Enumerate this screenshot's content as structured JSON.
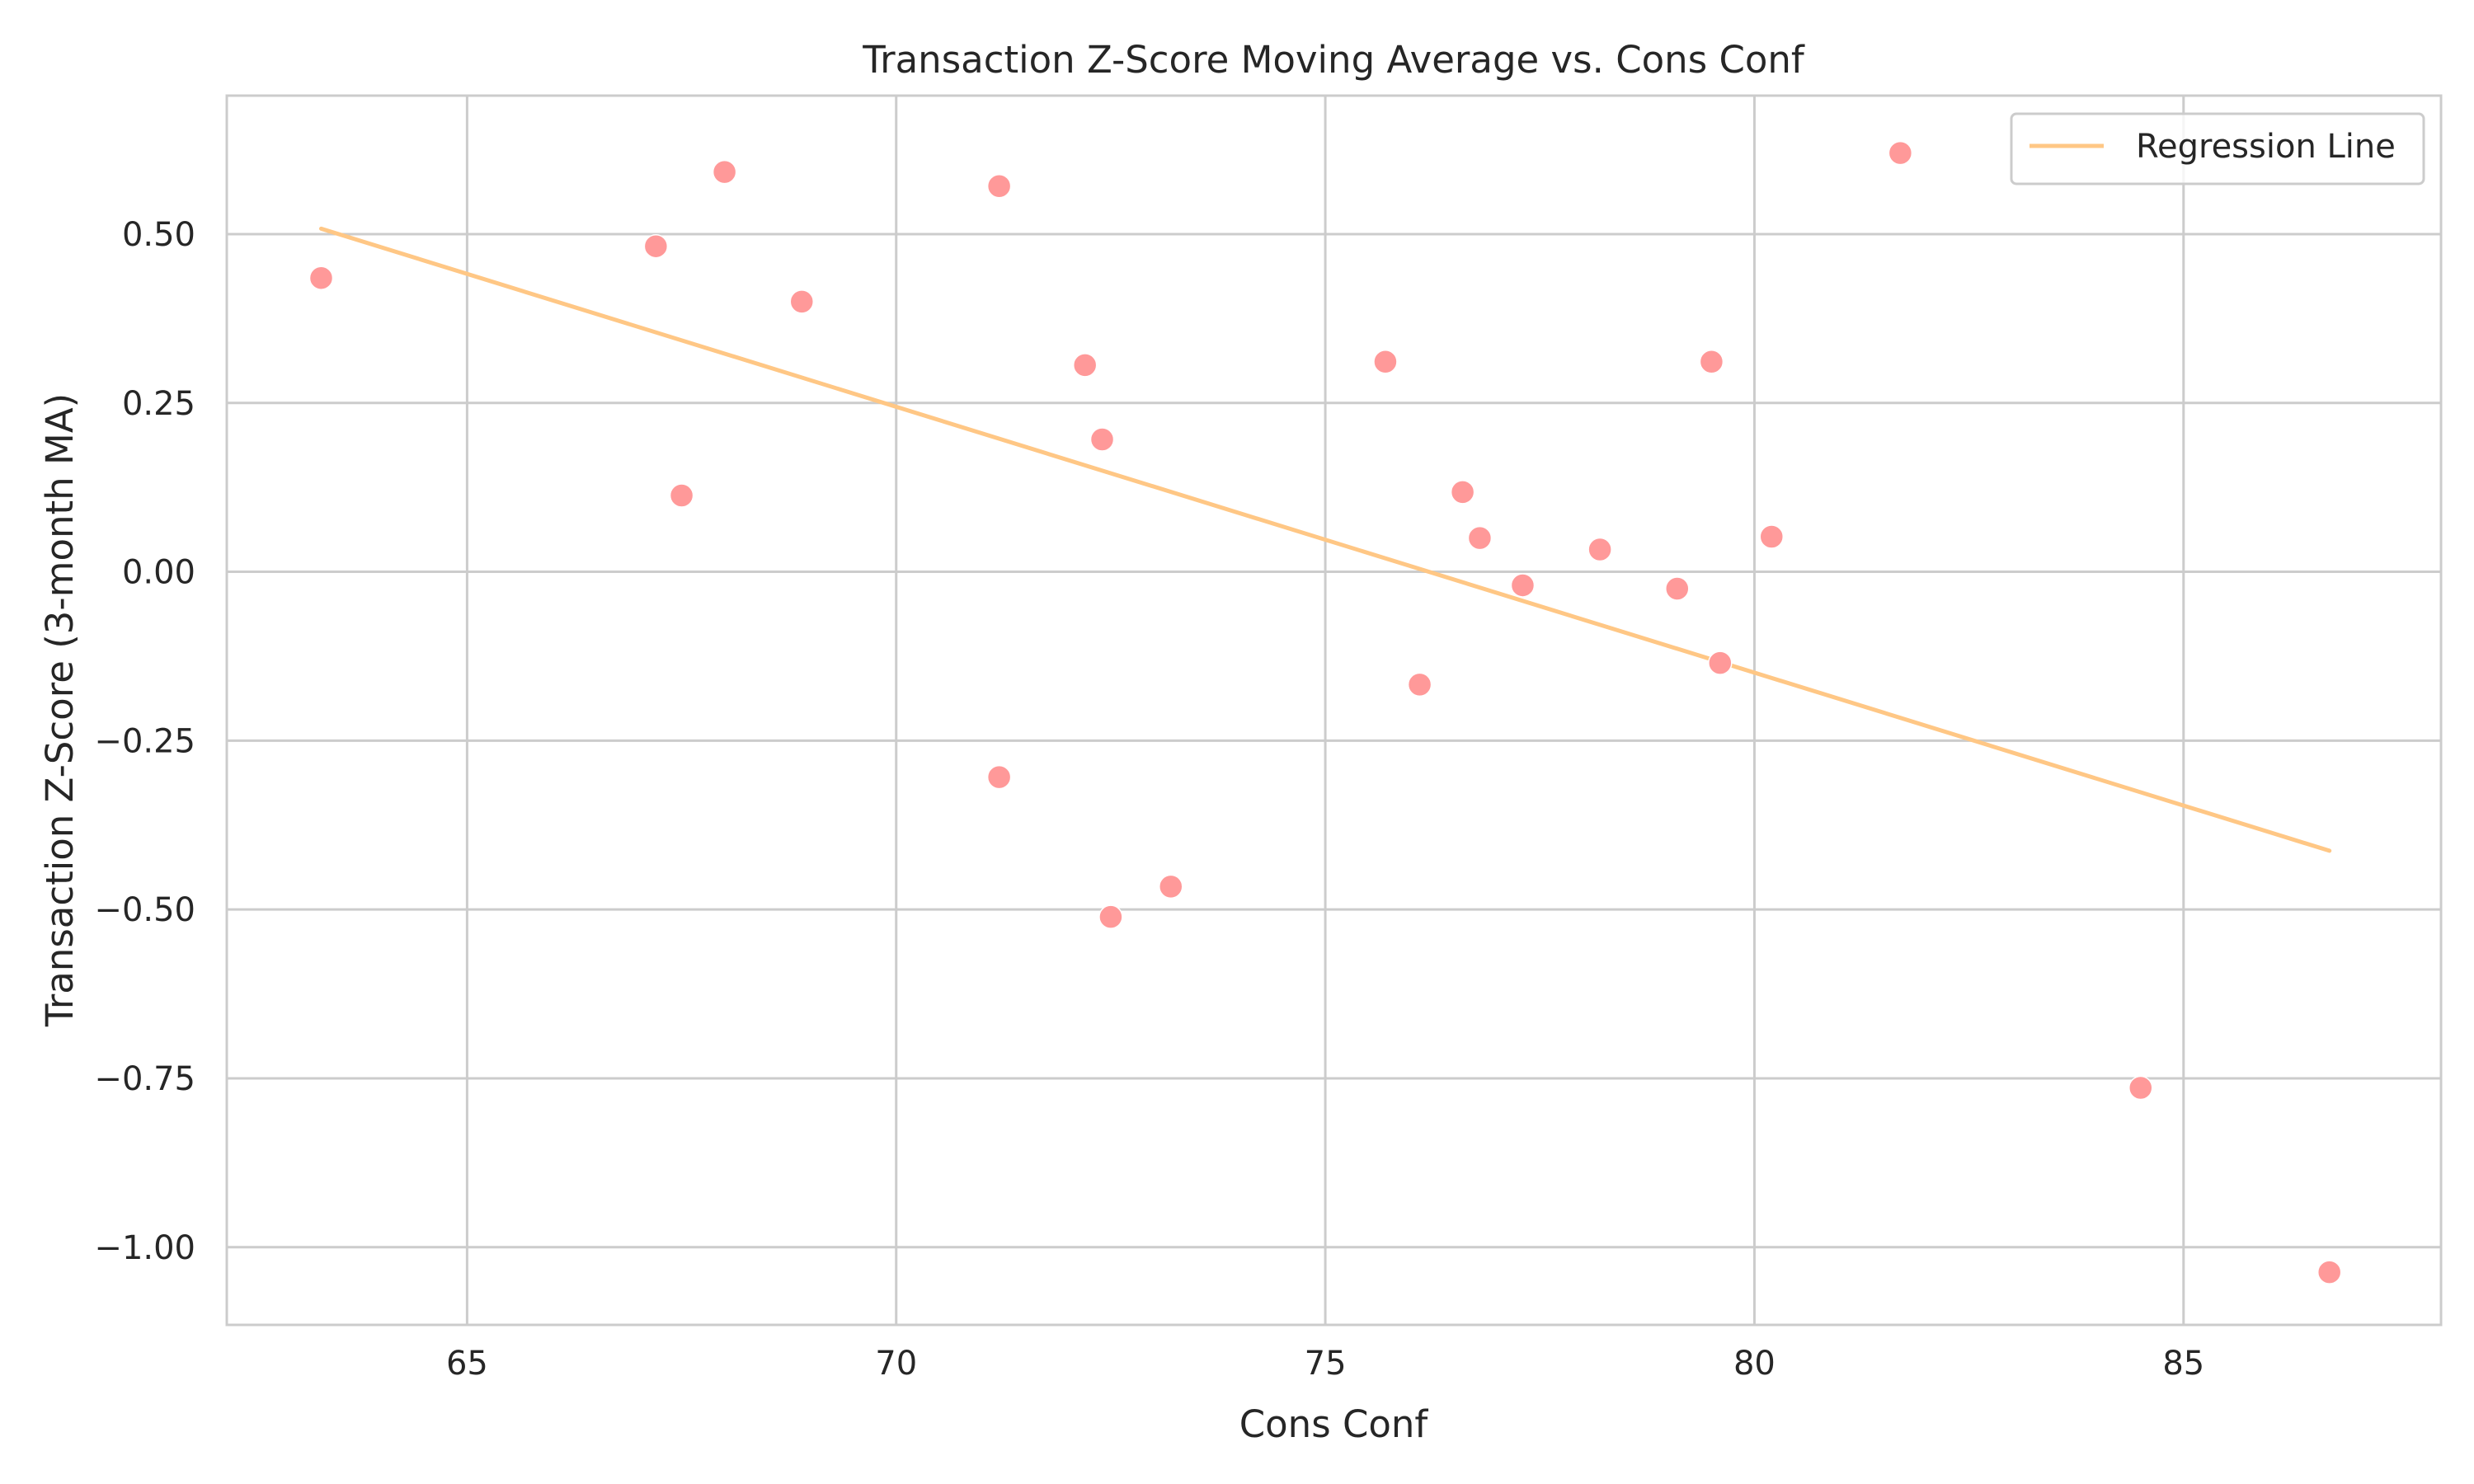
{
  "chart_data": {
    "type": "scatter",
    "title": "Transaction Z-Score Moving Average vs. Cons Conf",
    "xlabel": "Cons Conf",
    "ylabel": "Transaction Z-Score (3-month MA)",
    "xlim": [
      62.2,
      88.0
    ],
    "ylim": [
      -1.115,
      0.705
    ],
    "xticks": [
      65,
      70,
      75,
      80,
      85
    ],
    "yticks": [
      -1.0,
      -0.75,
      -0.5,
      -0.25,
      0.0,
      0.25,
      0.5
    ],
    "xtick_labels": [
      "65",
      "70",
      "75",
      "80",
      "85"
    ],
    "ytick_labels": [
      "−1.00",
      "−0.75",
      "−0.50",
      "−0.25",
      "0.00",
      "0.25",
      "0.50"
    ],
    "grid": true,
    "legend": {
      "placement": "top-right",
      "entries": [
        "Regression Line"
      ]
    },
    "colors": {
      "points": "#ff9999",
      "regression": "#ffc785",
      "grid": "#cccccc",
      "text": "#262626"
    },
    "points": [
      {
        "x": 63.3,
        "y": 0.435
      },
      {
        "x": 67.2,
        "y": 0.482
      },
      {
        "x": 67.5,
        "y": 0.113
      },
      {
        "x": 68.0,
        "y": 0.592
      },
      {
        "x": 68.9,
        "y": 0.4
      },
      {
        "x": 71.2,
        "y": 0.571
      },
      {
        "x": 71.2,
        "y": -0.304
      },
      {
        "x": 72.2,
        "y": 0.306
      },
      {
        "x": 72.4,
        "y": 0.196
      },
      {
        "x": 72.5,
        "y": -0.511
      },
      {
        "x": 73.2,
        "y": -0.466
      },
      {
        "x": 75.7,
        "y": 0.311
      },
      {
        "x": 76.1,
        "y": -0.167
      },
      {
        "x": 76.6,
        "y": 0.118
      },
      {
        "x": 76.8,
        "y": 0.05
      },
      {
        "x": 77.3,
        "y": -0.02
      },
      {
        "x": 78.2,
        "y": 0.033
      },
      {
        "x": 79.1,
        "y": -0.025
      },
      {
        "x": 79.5,
        "y": 0.311
      },
      {
        "x": 79.6,
        "y": -0.135
      },
      {
        "x": 80.2,
        "y": 0.052
      },
      {
        "x": 81.7,
        "y": 0.62
      },
      {
        "x": 84.5,
        "y": -0.764
      },
      {
        "x": 86.7,
        "y": -1.037
      }
    ],
    "regression_line": {
      "name": "Regression Line",
      "x": [
        63.3,
        86.7
      ],
      "y": [
        0.508,
        -0.413
      ]
    }
  }
}
